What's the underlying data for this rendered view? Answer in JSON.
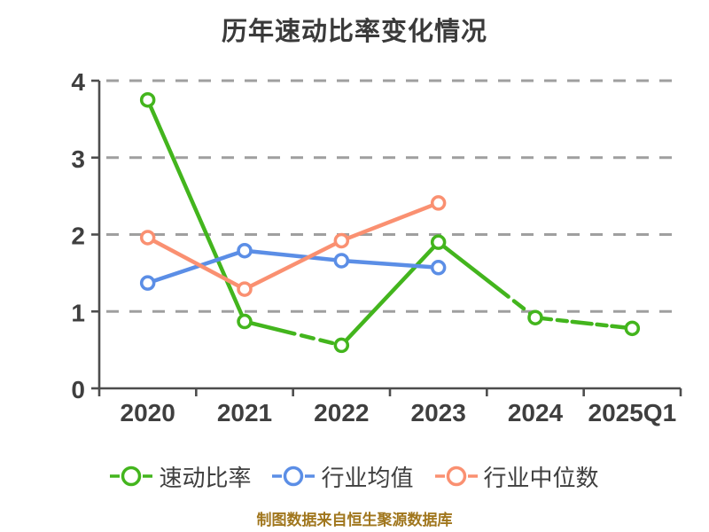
{
  "title": "历年速动比率变化情况",
  "source_note": "制图数据来自恒生聚源数据库",
  "colors": {
    "title": "#3a3a3a",
    "axis": "#4d4d4d",
    "tick_label": "#3f3f3f",
    "grid": "#9f9f9f",
    "legend_label": "#3f3f3f",
    "source_note": "#a0761d",
    "marker_fill": "#ffffff"
  },
  "chart_data": {
    "type": "line",
    "title": "历年速动比率变化情况",
    "categories": [
      "2020",
      "2021",
      "2022",
      "2023",
      "2024",
      "2025Q1"
    ],
    "series": [
      {
        "name": "速动比率",
        "color": "#43b51d",
        "values": [
          3.75,
          0.87,
          0.56,
          1.9,
          0.92,
          0.78
        ],
        "dashed_segments": [
          1,
          3,
          4
        ]
      },
      {
        "name": "行业均值",
        "color": "#5b8ee6",
        "values": [
          1.37,
          1.79,
          1.66,
          1.57,
          null,
          null
        ],
        "dashed_segments": []
      },
      {
        "name": "行业中位数",
        "color": "#fa9071",
        "values": [
          1.96,
          1.29,
          1.92,
          2.41,
          null,
          null
        ],
        "dashed_segments": []
      }
    ],
    "xlabel": "",
    "ylabel": "",
    "ylim": [
      0,
      4
    ],
    "yticks": [
      0,
      1,
      2,
      3,
      4
    ],
    "grid": "horizontal-dashed",
    "legend_position": "bottom",
    "marker": "open-circle"
  }
}
